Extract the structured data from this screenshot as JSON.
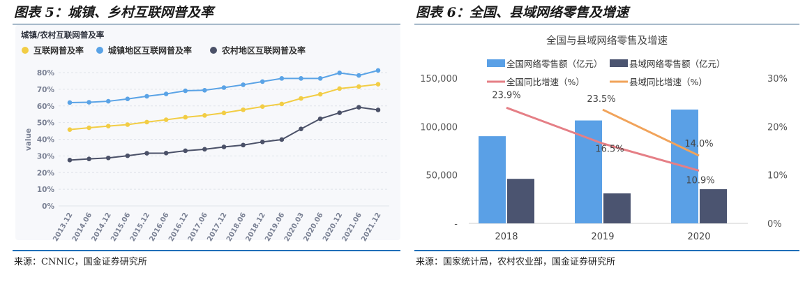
{
  "left": {
    "figure_title": "图表 5：城镇、乡村互联网普及率",
    "source": "来源：CNNIC，国金证券研究所"
  },
  "right": {
    "figure_title": "图表 6：全国、县域网络零售及增速",
    "source": "来源：国家统计局，农村农业部，国金证券研究所"
  },
  "chart_data": [
    {
      "type": "line",
      "title": "城镇/农村互联网普及率",
      "ylabel": "value",
      "x": [
        "2013.12",
        "2014.06",
        "2014.12",
        "2015.06",
        "2015.12",
        "2016.06",
        "2016.12",
        "2017.06",
        "2017.12",
        "2018.06",
        "2018.12",
        "2019.06",
        "2020.03",
        "2020.06",
        "2020.12",
        "2021.06",
        "2021.12"
      ],
      "yticks": [
        "0%",
        "10%",
        "20%",
        "30%",
        "40%",
        "50%",
        "60%",
        "70%",
        "80%"
      ],
      "ylim": [
        0,
        80
      ],
      "series": [
        {
          "name": "互联网普及率",
          "color": "#f2cd45",
          "values": [
            45.8,
            46.9,
            47.9,
            48.8,
            50.3,
            51.7,
            53.2,
            54.3,
            55.8,
            57.7,
            59.6,
            61.2,
            64.5,
            67.0,
            70.4,
            71.6,
            73.0
          ]
        },
        {
          "name": "城镇地区互联网普及率",
          "color": "#5aa3e6",
          "values": [
            62.0,
            62.2,
            62.8,
            64.2,
            65.8,
            67.2,
            69.1,
            69.4,
            71.0,
            72.7,
            74.6,
            76.5,
            76.5,
            76.5,
            79.8,
            78.3,
            81.3
          ]
        },
        {
          "name": "农村地区互联网普及率",
          "color": "#4b5168",
          "values": [
            27.5,
            28.2,
            28.8,
            30.1,
            31.6,
            31.7,
            33.1,
            34.0,
            35.4,
            36.5,
            38.4,
            39.8,
            46.2,
            52.3,
            55.9,
            59.2,
            57.6
          ]
        }
      ],
      "legend": "top-left",
      "grid": true
    },
    {
      "type": "bar",
      "title": "全国与县域网络零售及增速",
      "categories": [
        "2018",
        "2019",
        "2020"
      ],
      "y_left_ticks": [
        "-",
        "50,000",
        "100,000",
        "150,000"
      ],
      "y_right_ticks": [
        "0%",
        "10%",
        "20%",
        "30%"
      ],
      "ylim_left": [
        0,
        150000
      ],
      "ylim_right": [
        0,
        30
      ],
      "series": [
        {
          "name": "全国网络零售额（亿元）",
          "kind": "bar",
          "color": "#5aa0e6",
          "values": [
            90065,
            106324,
            117601
          ]
        },
        {
          "name": "县域网络零售额（亿元）",
          "kind": "bar",
          "color": "#4b5470",
          "values": [
            46000,
            30961,
            35303
          ]
        },
        {
          "name": "全国同比增速（%）",
          "kind": "line",
          "color": "#e57f86",
          "values": [
            23.9,
            16.5,
            10.9
          ],
          "labels": [
            "23.9%",
            "16.5%",
            "10.9%"
          ]
        },
        {
          "name": "县域同比增速（%）",
          "kind": "line",
          "color": "#f1a35a",
          "values": [
            null,
            23.5,
            14.0
          ],
          "labels": [
            "",
            "23.5%",
            "14.0%"
          ]
        }
      ],
      "legend": "top"
    }
  ]
}
